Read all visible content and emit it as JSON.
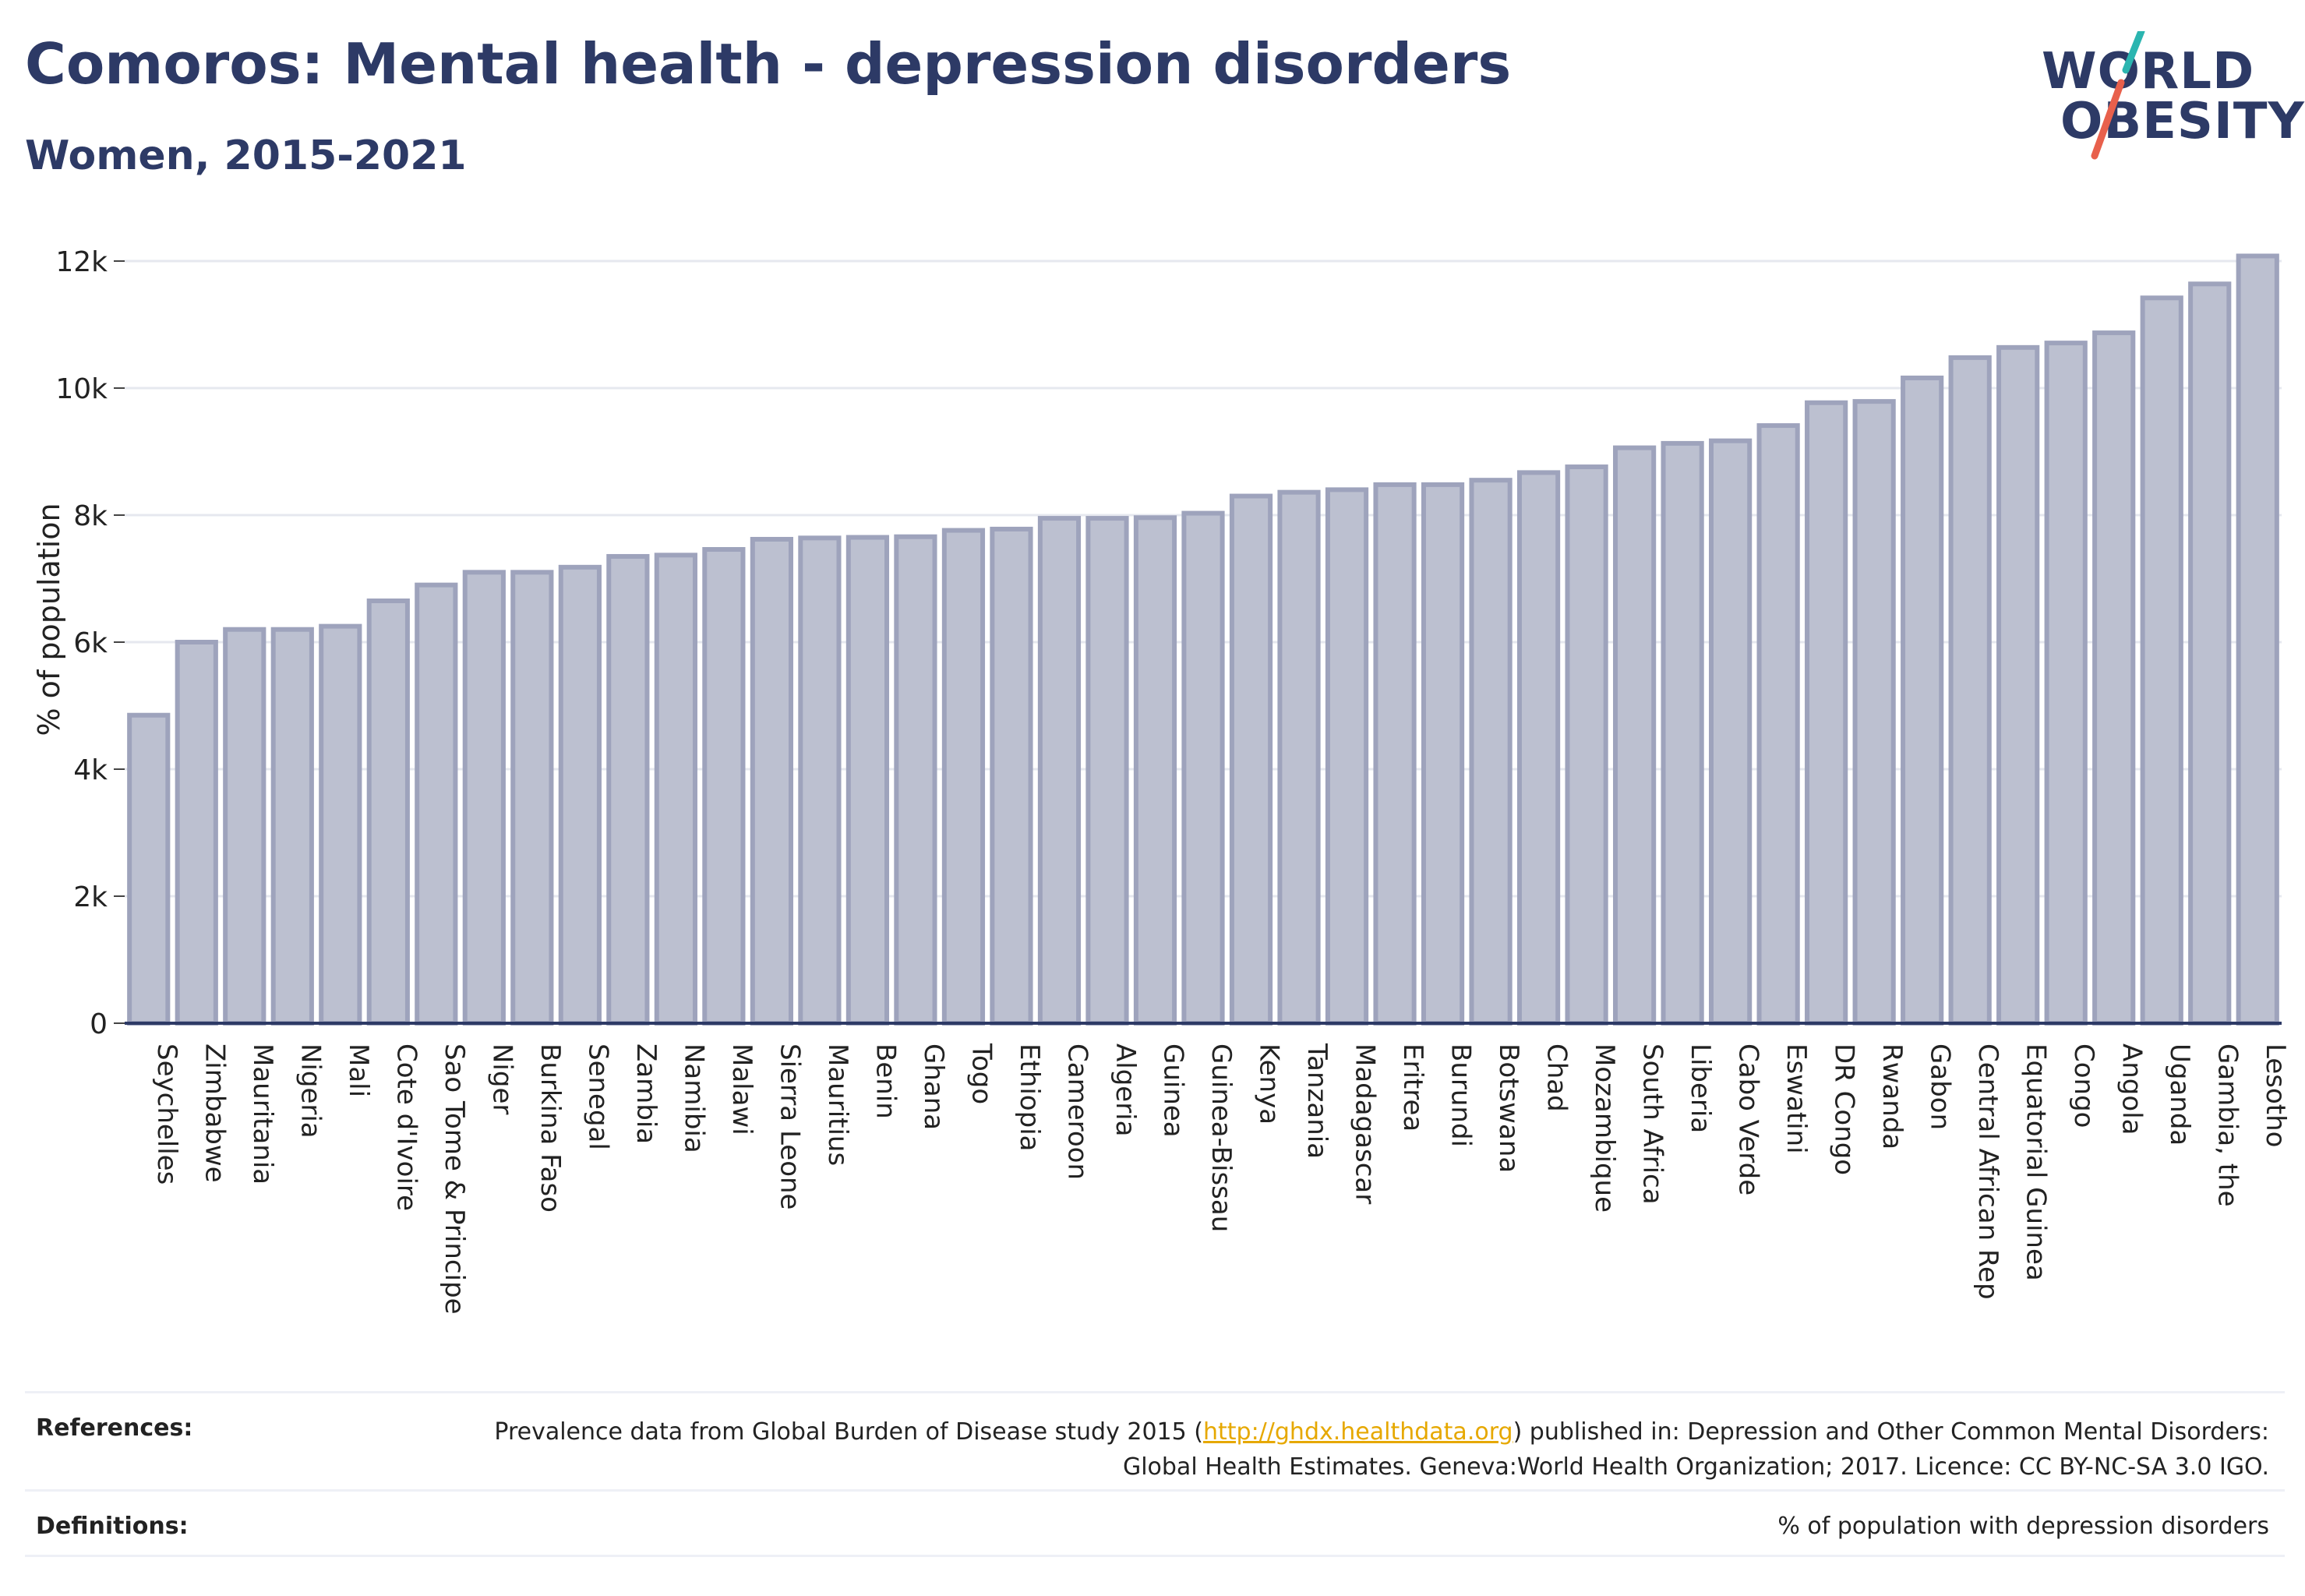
{
  "header": {
    "title": "Comoros: Mental health - depression disorders",
    "subtitle": "Women, 2015-2021"
  },
  "logo": {
    "line1": "WORLD",
    "line2": "OBESITY"
  },
  "colors": {
    "title": "#2d3a66",
    "bar_fill": "#bcc0d0",
    "bar_stroke": "#9ea3bc",
    "grid": "#e6e8ef",
    "axis": "#2d3a66",
    "link": "#e6a800",
    "logo_slash_teal": "#2bb5b0",
    "logo_slash_red": "#e8604c"
  },
  "chart_data": {
    "type": "bar",
    "title": "Comoros: Mental health - depression disorders",
    "subtitle": "Women, 2015-2021",
    "xlabel": "",
    "ylabel": "% of population",
    "ylim": [
      0,
      12000
    ],
    "yticks": [
      0,
      2000,
      4000,
      6000,
      8000,
      10000,
      12000
    ],
    "ytick_labels": [
      "0",
      "2k",
      "4k",
      "6k",
      "8k",
      "10k",
      "12k"
    ],
    "grid": true,
    "categories": [
      "Seychelles",
      "Zimbabwe",
      "Mauritania",
      "Nigeria",
      "Mali",
      "Cote d'Ivoire",
      "Sao Tome & Principe",
      "Niger",
      "Burkina Faso",
      "Senegal",
      "Zambia",
      "Namibia",
      "Malawi",
      "Sierra Leone",
      "Mauritius",
      "Benin",
      "Ghana",
      "Togo",
      "Ethiopia",
      "Cameroon",
      "Algeria",
      "Guinea",
      "Guinea-Bissau",
      "Kenya",
      "Tanzania",
      "Madagascar",
      "Eritrea",
      "Burundi",
      "Botswana",
      "Chad",
      "Mozambique",
      "South Africa",
      "Liberia",
      "Cabo Verde",
      "Eswatini",
      "DR Congo",
      "Rwanda",
      "Gabon",
      "Central African Rep",
      "Equatorial Guinea",
      "Congo",
      "Angola",
      "Uganda",
      "Gambia, the",
      "Lesotho"
    ],
    "values": [
      4850,
      6000,
      6200,
      6200,
      6250,
      6650,
      6900,
      7100,
      7100,
      7180,
      7350,
      7370,
      7460,
      7620,
      7640,
      7650,
      7660,
      7760,
      7780,
      7950,
      7950,
      7960,
      8030,
      8300,
      8360,
      8400,
      8480,
      8480,
      8550,
      8670,
      8760,
      9060,
      9130,
      9170,
      9410,
      9770,
      9790,
      10160,
      10480,
      10640,
      10710,
      10870,
      11420,
      11640,
      12080
    ]
  },
  "footer": {
    "references_label": "References:",
    "references_text_before": "Prevalence data from Global Burden of Disease study 2015 (",
    "references_link": "http://ghdx.healthdata.org",
    "references_text_after": ") published in: Depression and Other Common Mental Disorders: Global Health Estimates. Geneva:World Health Organization; 2017. Licence: CC BY-NC-SA 3.0 IGO.",
    "definitions_label": "Definitions:",
    "definitions_text": "% of population with depression disorders"
  }
}
